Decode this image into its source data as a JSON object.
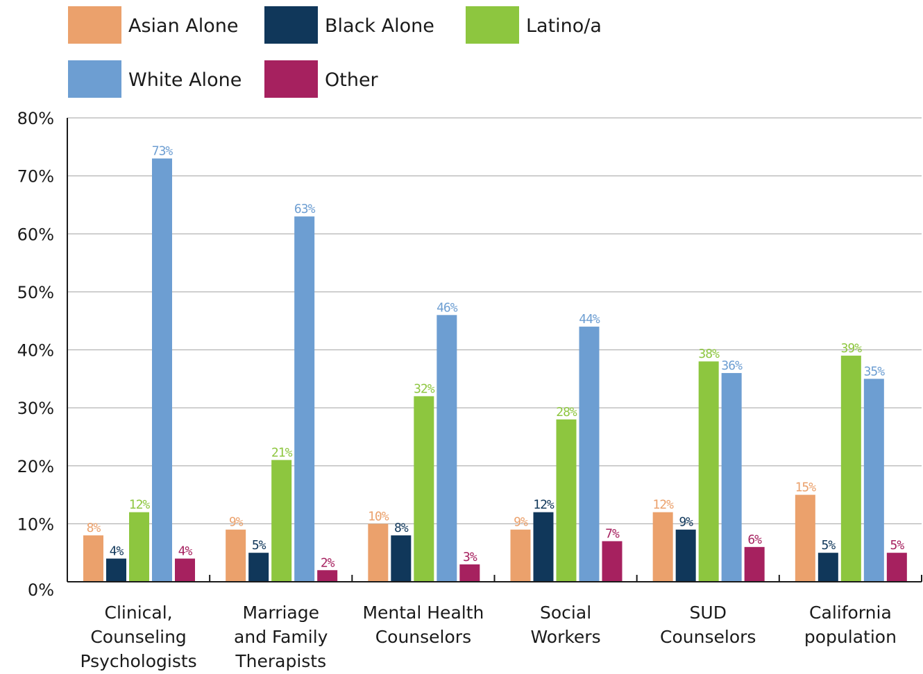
{
  "chart_data": {
    "type": "bar",
    "ylim": [
      0,
      80
    ],
    "y_ticks": [
      "0%",
      "10%",
      "20%",
      "30%",
      "40%",
      "50%",
      "60%",
      "70%",
      "80%"
    ],
    "y_tick_values": [
      0,
      10,
      20,
      30,
      40,
      50,
      60,
      70,
      80
    ],
    "grid": "horizontal",
    "legend_position": "top",
    "categories": [
      [
        "Clinical,",
        "Counseling",
        "Psychologists"
      ],
      [
        "Marriage",
        "and Family",
        "Therapists"
      ],
      [
        "Mental Health",
        "Counselors"
      ],
      [
        "Social",
        "Workers"
      ],
      [
        "SUD",
        "Counselors"
      ],
      [
        "California",
        "population"
      ]
    ],
    "series": [
      {
        "name": "Asian Alone",
        "color": "#eba16c",
        "values": [
          8,
          9,
          10,
          9,
          12,
          15
        ],
        "labels": [
          "8%",
          "9%",
          "10%",
          "9%",
          "12%",
          "15%"
        ]
      },
      {
        "name": "Black Alone",
        "color": "#10375a",
        "values": [
          4,
          5,
          8,
          12,
          9,
          5
        ],
        "labels": [
          "4%",
          "5%",
          "8%",
          "12%",
          "9%",
          "5%"
        ]
      },
      {
        "name": "Latino/a",
        "color": "#8dc63f",
        "values": [
          12,
          21,
          32,
          28,
          38,
          39
        ],
        "labels": [
          "12%",
          "21%",
          "32%",
          "28%",
          "38%",
          "39%"
        ]
      },
      {
        "name": "White Alone",
        "color": "#6d9ed2",
        "values": [
          73,
          63,
          46,
          44,
          36,
          35
        ],
        "labels": [
          "73%",
          "63%",
          "46%",
          "44%",
          "36%",
          "35%"
        ]
      },
      {
        "name": "Other",
        "color": "#a6215f",
        "values": [
          4,
          2,
          3,
          7,
          6,
          5
        ],
        "labels": [
          "4%",
          "2%",
          "3%",
          "7%",
          "6%",
          "5%"
        ]
      }
    ]
  }
}
